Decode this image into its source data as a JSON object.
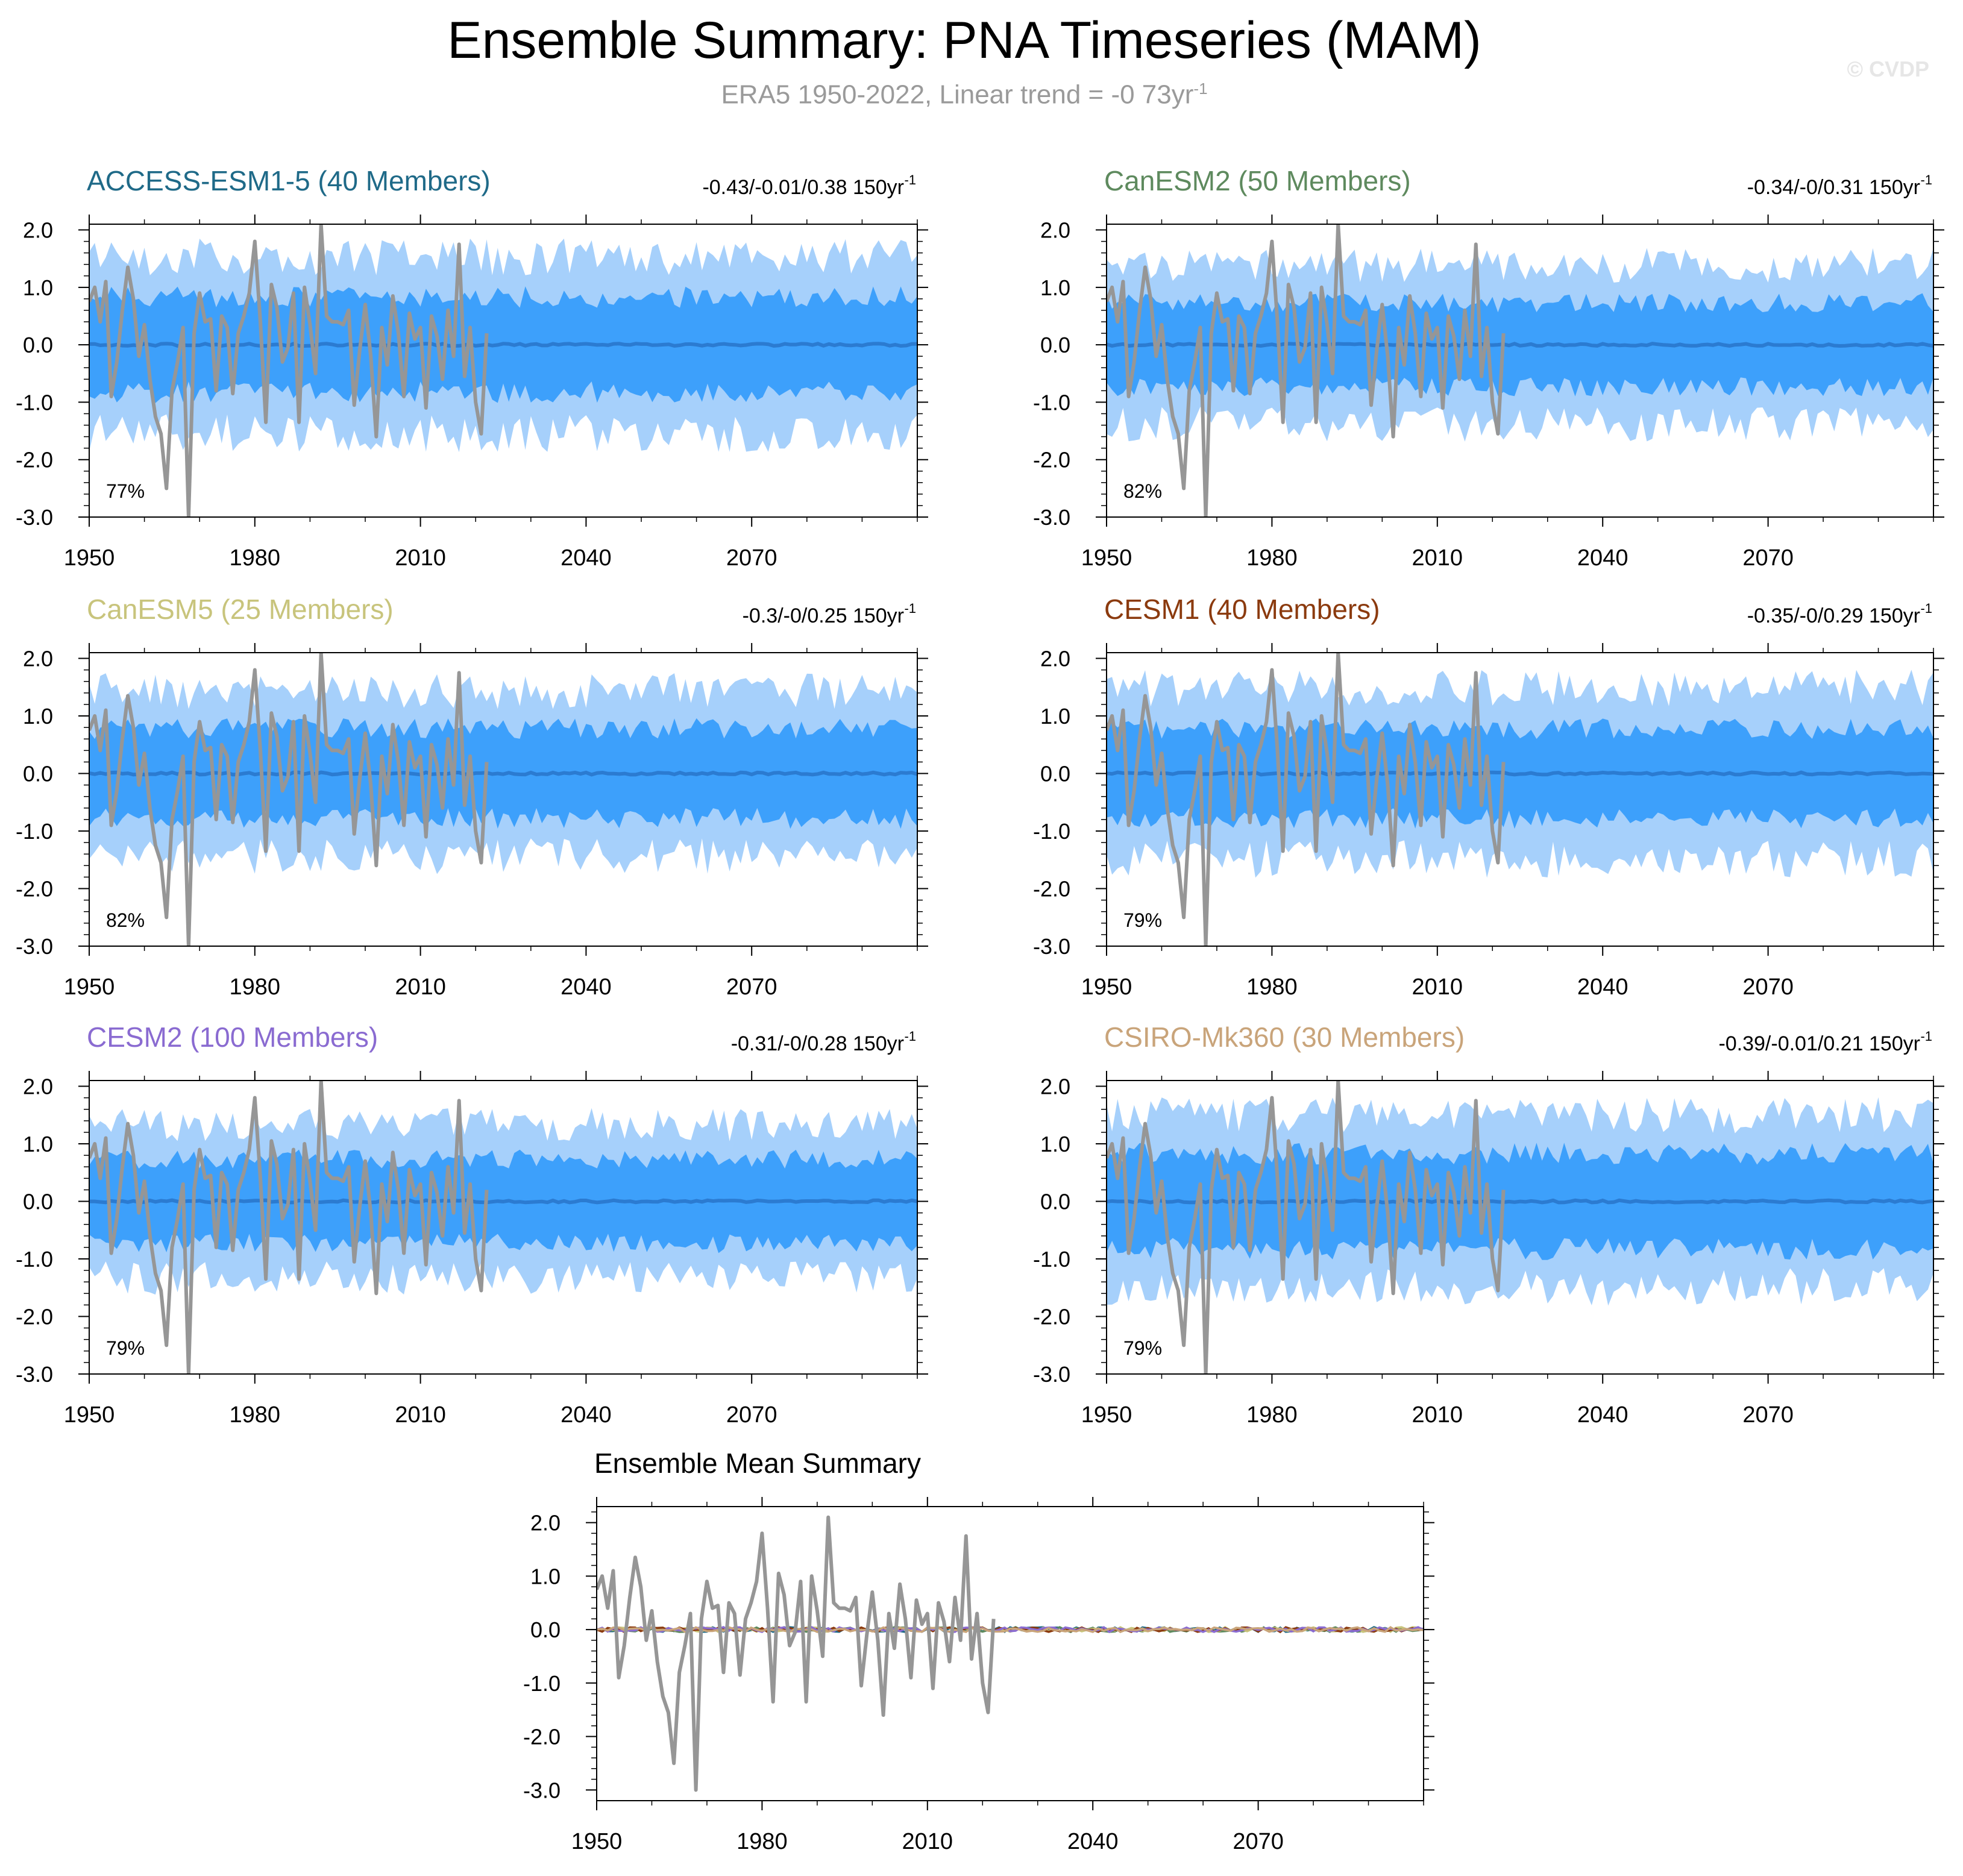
{
  "title": "Ensemble Summary: PNA Timeseries (MAM)",
  "subtitle": "ERA5 1950-2022, Linear trend = -0 73yr",
  "subtitle_sup": "-1",
  "watermark": "© CVDP",
  "colors": {
    "outer_band": "#a6d0fb",
    "inner_band": "#3da0fb",
    "ensemble_mean": "#2b7bd1",
    "observations": "#969696",
    "axis": "#000000"
  },
  "chart_data": [
    {
      "type": "area",
      "title": "ACCESS-ESM1-5 (40 Members)",
      "title_color": "#1f6a88",
      "trend_text": "-0.43/-0.01/0.38 150yr",
      "trend_sup": "-1",
      "percent": "77%",
      "xlim": [
        1950,
        2100
      ],
      "ylim": [
        -3.0,
        2.1
      ],
      "xticks": [
        1950,
        1980,
        2010,
        2040,
        2070
      ],
      "yticks": [
        2.0,
        1.0,
        0.0,
        -1.0,
        -2.0,
        -3.0
      ],
      "ytick_labels": [
        "2.0",
        "1.0",
        "0.0",
        "-1.0",
        "-2.0",
        "-3.0"
      ],
      "series": [
        {
          "role": "outer",
          "amplitude": 1.5
        },
        {
          "role": "inner",
          "amplitude": 0.85
        },
        {
          "role": "mean",
          "values": 0.0
        },
        {
          "role": "obs"
        }
      ]
    },
    {
      "type": "area",
      "title": "CanESM2 (50 Members)",
      "title_color": "#5e8a5e",
      "trend_text": "-0.34/-0/0.31 150yr",
      "trend_sup": "-1",
      "percent": "82%",
      "xlim": [
        1950,
        2100
      ],
      "ylim": [
        -3.0,
        2.1
      ],
      "xticks": [
        1950,
        1980,
        2010,
        2040,
        2070
      ],
      "yticks": [
        2.0,
        1.0,
        0.0,
        -1.0,
        -2.0,
        -3.0
      ],
      "ytick_labels": [
        "2.0",
        "1.0",
        "0.0",
        "-1.0",
        "-2.0",
        "-3.0"
      ],
      "series": [
        {
          "role": "outer",
          "amplitude": 1.35
        },
        {
          "role": "inner",
          "amplitude": 0.75
        },
        {
          "role": "mean",
          "values": 0.0
        },
        {
          "role": "obs"
        }
      ]
    },
    {
      "type": "area",
      "title": "CanESM5 (25 Members)",
      "title_color": "#c8c47c",
      "trend_text": "-0.3/-0/0.25 150yr",
      "trend_sup": "-1",
      "percent": "82%",
      "xlim": [
        1950,
        2100
      ],
      "ylim": [
        -3.0,
        2.1
      ],
      "xticks": [
        1950,
        1980,
        2010,
        2040,
        2070
      ],
      "yticks": [
        2.0,
        1.0,
        0.0,
        -1.0,
        -2.0,
        -3.0
      ],
      "ytick_labels": [
        "2.0",
        "1.0",
        "0.0",
        "-1.0",
        "-2.0",
        "-3.0"
      ],
      "series": [
        {
          "role": "outer",
          "amplitude": 1.4
        },
        {
          "role": "inner",
          "amplitude": 0.8
        },
        {
          "role": "mean",
          "values": 0.0
        },
        {
          "role": "obs"
        }
      ]
    },
    {
      "type": "area",
      "title": "CESM1 (40 Members)",
      "title_color": "#8b3a0e",
      "trend_text": "-0.35/-0/0.29 150yr",
      "trend_sup": "-1",
      "percent": "79%",
      "xlim": [
        1950,
        2100
      ],
      "ylim": [
        -3.0,
        2.1
      ],
      "xticks": [
        1950,
        1980,
        2010,
        2040,
        2070
      ],
      "yticks": [
        2.0,
        1.0,
        0.0,
        -1.0,
        -2.0,
        -3.0
      ],
      "ytick_labels": [
        "2.0",
        "1.0",
        "0.0",
        "-1.0",
        "-2.0",
        "-3.0"
      ],
      "series": [
        {
          "role": "outer",
          "amplitude": 1.45
        },
        {
          "role": "inner",
          "amplitude": 0.8
        },
        {
          "role": "mean",
          "values": 0.0
        },
        {
          "role": "obs"
        }
      ]
    },
    {
      "type": "area",
      "title": "CESM2 (100 Members)",
      "title_color": "#8a6bd1",
      "trend_text": "-0.31/-0/0.28 150yr",
      "trend_sup": "-1",
      "percent": "79%",
      "xlim": [
        1950,
        2100
      ],
      "ylim": [
        -3.0,
        2.1
      ],
      "xticks": [
        1950,
        1980,
        2010,
        2040,
        2070
      ],
      "yticks": [
        2.0,
        1.0,
        0.0,
        -1.0,
        -2.0,
        -3.0
      ],
      "ytick_labels": [
        "2.0",
        "1.0",
        "0.0",
        "-1.0",
        "-2.0",
        "-3.0"
      ],
      "series": [
        {
          "role": "outer",
          "amplitude": 1.3
        },
        {
          "role": "inner",
          "amplitude": 0.75
        },
        {
          "role": "mean",
          "values": 0.0
        },
        {
          "role": "obs"
        }
      ]
    },
    {
      "type": "area",
      "title": "CSIRO-Mk360 (30 Members)",
      "title_color": "#c9a47a",
      "trend_text": "-0.39/-0.01/0.21 150yr",
      "trend_sup": "-1",
      "percent": "79%",
      "xlim": [
        1950,
        2100
      ],
      "ylim": [
        -3.0,
        2.1
      ],
      "xticks": [
        1950,
        1980,
        2010,
        2040,
        2070
      ],
      "yticks": [
        2.0,
        1.0,
        0.0,
        -1.0,
        -2.0,
        -3.0
      ],
      "ytick_labels": [
        "2.0",
        "1.0",
        "0.0",
        "-1.0",
        "-2.0",
        "-3.0"
      ],
      "series": [
        {
          "role": "outer",
          "amplitude": 1.45
        },
        {
          "role": "inner",
          "amplitude": 0.85
        },
        {
          "role": "mean",
          "values": 0.0
        },
        {
          "role": "obs"
        }
      ]
    },
    {
      "type": "line",
      "title": "Ensemble Mean Summary",
      "title_color": "#000000",
      "xlim": [
        1950,
        2100
      ],
      "ylim": [
        -3.2,
        2.3
      ],
      "xticks": [
        1950,
        1980,
        2010,
        2040,
        2070
      ],
      "yticks": [
        2.0,
        1.0,
        0.0,
        -1.0,
        -2.0,
        -3.0
      ],
      "ytick_labels": [
        "2.0",
        "1.0",
        "0.0",
        "-1.0",
        "-2.0",
        "-3.0"
      ],
      "series": [
        {
          "role": "obs"
        },
        {
          "role": "mean-lines",
          "colors": [
            "#1f6a88",
            "#5e8a5e",
            "#c8c47c",
            "#8b3a0e",
            "#8a6bd1",
            "#c9a47a"
          ]
        }
      ]
    }
  ],
  "observations": {
    "name": "ERA5",
    "x_start": 1950,
    "x_end": 2022,
    "values": [
      0.75,
      1.0,
      0.4,
      1.1,
      -0.9,
      -0.3,
      0.6,
      1.35,
      0.8,
      -0.2,
      0.35,
      -0.6,
      -1.25,
      -1.55,
      -2.5,
      -0.8,
      -0.3,
      0.3,
      -3.0,
      0.2,
      0.9,
      0.4,
      0.45,
      -0.8,
      0.5,
      0.3,
      -0.85,
      0.2,
      0.5,
      0.9,
      1.8,
      0.4,
      -1.35,
      1.05,
      0.65,
      -0.3,
      -0.05,
      0.9,
      -1.35,
      1.0,
      0.35,
      -0.5,
      2.1,
      0.5,
      0.4,
      0.4,
      0.35,
      0.6,
      -1.05,
      -0.1,
      0.7,
      -0.2,
      -1.6,
      0.3,
      -0.35,
      0.85,
      0.2,
      -0.9,
      0.55,
      0.1,
      0.3,
      -1.1,
      0.5,
      0.15,
      -0.6,
      0.6,
      -0.2,
      1.75,
      -0.55,
      0.3,
      -1.0,
      -1.55,
      0.2
    ]
  }
}
